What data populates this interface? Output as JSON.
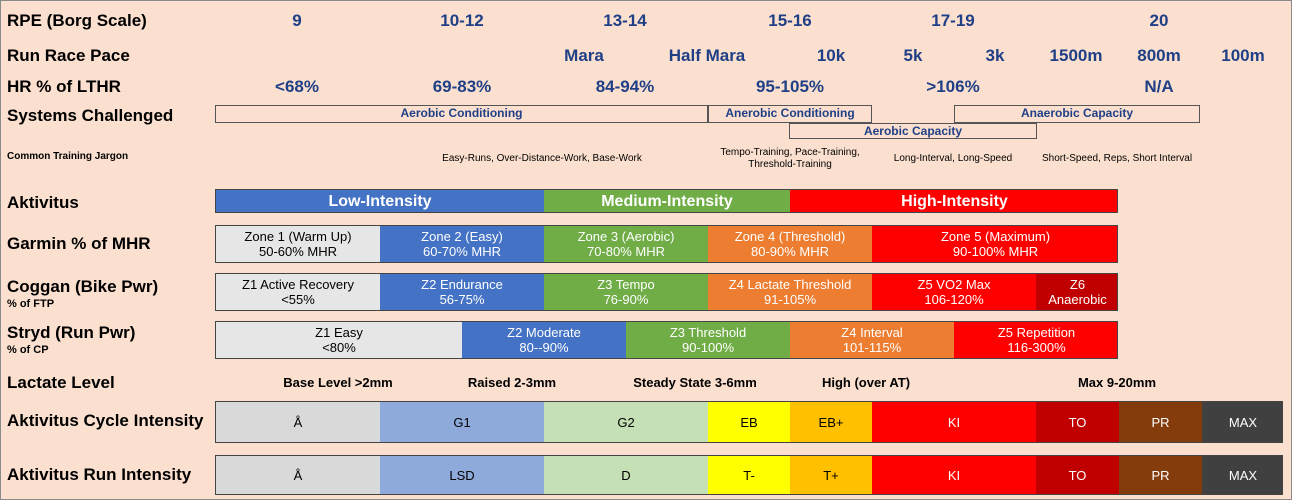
{
  "labels": {
    "rpe": "RPE (Borg Scale)",
    "pace": "Run Race Pace",
    "hr": "HR % of LTHR",
    "systems": "Systems Challenged",
    "jargon": "Common Training Jargon",
    "aktivitus": "Aktivitus",
    "garmin": "Garmin % of MHR",
    "coggan": "Coggan (Bike Pwr)",
    "coggan_sub": "% of FTP",
    "stryd": "Stryd (Run Pwr)",
    "stryd_sub": "% of CP",
    "lactate": "Lactate Level",
    "cycle": "Aktivitus Cycle Intensity",
    "run": "Aktivitus Run Intensity"
  },
  "rpe": [
    "9",
    "10-12",
    "13-14",
    "15-16",
    "17-19",
    "20"
  ],
  "pace": [
    "Mara",
    "Half Mara",
    "10k",
    "5k",
    "3k",
    "1500m",
    "800m",
    "100m"
  ],
  "hr": [
    "<68%",
    "69-83%",
    "84-94%",
    "95-105%",
    ">106%",
    "N/A"
  ],
  "systems": {
    "aerobic_conditioning": "Aerobic Conditioning",
    "anerobic_conditioning": "Anerobic Conditioning",
    "aerobic_capacity": "Aerobic Capacity",
    "anaerobic_capacity": "Anaerobic Capacity"
  },
  "jargon": {
    "easy": "Easy-Runs, Over-Distance-Work, Base-Work",
    "tempo_1": "Tempo-Training, Pace-Training,",
    "tempo_2": "Threshold-Training",
    "long": "Long-Interval, Long-Speed",
    "short": "Short-Speed, Reps, Short Interval"
  },
  "aktivitus": [
    {
      "label": "Low-Intensity",
      "color": "#4472c4"
    },
    {
      "label": "Medium-Intensity",
      "color": "#70ad47"
    },
    {
      "label": "High-Intensity",
      "color": "#ff0000"
    }
  ],
  "garmin": [
    {
      "l1": "Zone 1 (Warm Up)",
      "l2": "50-60% MHR",
      "color": "#e7e6e6",
      "text": "#000000"
    },
    {
      "l1": "Zone 2 (Easy)",
      "l2": "60-70% MHR",
      "color": "#4472c4",
      "text": "#ffffff"
    },
    {
      "l1": "Zone 3 (Aerobic)",
      "l2": "70-80% MHR",
      "color": "#70ad47",
      "text": "#ffffff"
    },
    {
      "l1": "Zone 4 (Threshold)",
      "l2": "80-90% MHR",
      "color": "#ed7d31",
      "text": "#ffffff"
    },
    {
      "l1": "Zone 5 (Maximum)",
      "l2": "90-100% MHR",
      "color": "#ff0000",
      "text": "#ffffff"
    }
  ],
  "coggan": [
    {
      "l1": "Z1 Active Recovery",
      "l2": "<55%",
      "color": "#e7e6e6",
      "text": "#000000"
    },
    {
      "l1": "Z2 Endurance",
      "l2": "56-75%",
      "color": "#4472c4",
      "text": "#ffffff"
    },
    {
      "l1": "Z3 Tempo",
      "l2": "76-90%",
      "color": "#70ad47",
      "text": "#ffffff"
    },
    {
      "l1": "Z4 Lactate Threshold",
      "l2": "91-105%",
      "color": "#ed7d31",
      "text": "#ffffff"
    },
    {
      "l1": "Z5 VO2 Max",
      "l2": "106-120%",
      "color": "#ff0000",
      "text": "#ffffff"
    },
    {
      "l1": "Z6",
      "l2": "Anaerobic",
      "color": "#c00000",
      "text": "#ffffff"
    }
  ],
  "stryd": [
    {
      "l1": "Z1 Easy",
      "l2": "<80%",
      "color": "#e7e6e6",
      "text": "#000000"
    },
    {
      "l1": "Z2 Moderate",
      "l2": "80--90%",
      "color": "#4472c4",
      "text": "#ffffff"
    },
    {
      "l1": "Z3 Threshold",
      "l2": "90-100%",
      "color": "#70ad47",
      "text": "#ffffff"
    },
    {
      "l1": "Z4 Interval",
      "l2": "101-115%",
      "color": "#ed7d31",
      "text": "#ffffff"
    },
    {
      "l1": "Z5 Repetition",
      "l2": "116-300%",
      "color": "#ff0000",
      "text": "#ffffff"
    }
  ],
  "lactate": [
    "Base Level >2mm",
    "Raised 2-3mm",
    "Steady State 3-6mm",
    "High (over AT)",
    "Max 9-20mm"
  ],
  "cycle": [
    {
      "label": "Å",
      "color": "#d9d9d9",
      "text": "#000000"
    },
    {
      "label": "G1",
      "color": "#8eaadb",
      "text": "#000000"
    },
    {
      "label": "G2",
      "color": "#c5e0b4",
      "text": "#000000"
    },
    {
      "label": "EB",
      "color": "#ffff00",
      "text": "#000000"
    },
    {
      "label": "EB+",
      "color": "#ffc000",
      "text": "#000000"
    },
    {
      "label": "KI",
      "color": "#ff0000",
      "text": "#ffffff"
    },
    {
      "label": "TO",
      "color": "#c00000",
      "text": "#ffffff"
    },
    {
      "label": "PR",
      "color": "#843c0c",
      "text": "#ffffff"
    },
    {
      "label": "MAX",
      "color": "#404040",
      "text": "#ffffff"
    }
  ],
  "run": [
    {
      "label": "Å",
      "color": "#d9d9d9",
      "text": "#000000"
    },
    {
      "label": "LSD",
      "color": "#8eaadb",
      "text": "#000000"
    },
    {
      "label": "D",
      "color": "#c5e0b4",
      "text": "#000000"
    },
    {
      "label": "T-",
      "color": "#ffff00",
      "text": "#000000"
    },
    {
      "label": "T+",
      "color": "#ffc000",
      "text": "#000000"
    },
    {
      "label": "KI",
      "color": "#ff0000",
      "text": "#ffffff"
    },
    {
      "label": "TO",
      "color": "#c00000",
      "text": "#ffffff"
    },
    {
      "label": "PR",
      "color": "#843c0c",
      "text": "#ffffff"
    },
    {
      "label": "MAX",
      "color": "#404040",
      "text": "#ffffff"
    }
  ]
}
